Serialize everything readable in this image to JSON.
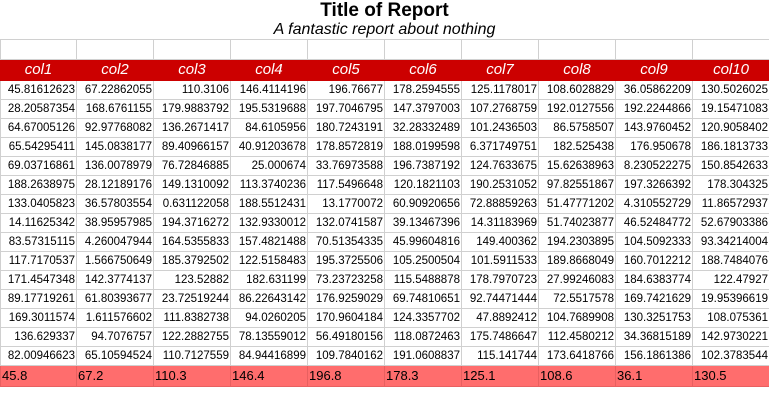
{
  "report": {
    "title": "Title of Report",
    "subtitle": "A fantastic report about nothing"
  },
  "table": {
    "columns": [
      "col1",
      "col2",
      "col3",
      "col4",
      "col5",
      "col6",
      "col7",
      "col8",
      "col9",
      "col10"
    ],
    "rows": [
      [
        "45.81612623",
        "67.22862055",
        "110.3106",
        "146.4114196",
        "196.76677",
        "178.2594555",
        "125.1178017",
        "108.6028829",
        "36.05862209",
        "130.5026025"
      ],
      [
        "28.20587354",
        "168.6761155",
        "179.9883792",
        "195.5319688",
        "197.7046795",
        "147.3797003",
        "107.2768759",
        "192.0127556",
        "192.2244866",
        "19.15471083"
      ],
      [
        "64.67005126",
        "92.97768082",
        "136.2671417",
        "84.6105956",
        "180.7243191",
        "32.28332489",
        "101.2436503",
        "86.5758507",
        "143.9760452",
        "120.9058402"
      ],
      [
        "65.54295411",
        "145.0838177",
        "89.40966157",
        "40.91203678",
        "178.8572819",
        "188.0199598",
        "6.371749751",
        "182.525438",
        "176.950678",
        "186.1813733"
      ],
      [
        "69.03716861",
        "136.0078979",
        "76.72846885",
        "25.000674",
        "33.76973588",
        "196.7387192",
        "124.7633675",
        "15.62638963",
        "8.230522275",
        "150.8542633"
      ],
      [
        "188.2638975",
        "28.12189176",
        "149.1310092",
        "113.3740236",
        "117.5496648",
        "120.1821103",
        "190.2531052",
        "97.82551867",
        "197.3266392",
        "178.304325"
      ],
      [
        "133.0405823",
        "36.57803554",
        "0.631122058",
        "188.5512431",
        "13.1770072",
        "60.90920656",
        "72.88859263",
        "51.47771202",
        "4.310552729",
        "11.86572937"
      ],
      [
        "14.11625342",
        "38.95957985",
        "194.3716272",
        "132.9330012",
        "132.0741587",
        "39.13467396",
        "14.31183969",
        "51.74023877",
        "46.52484772",
        "52.67903386"
      ],
      [
        "83.57315115",
        "4.260047944",
        "164.5355833",
        "157.4821488",
        "70.51354335",
        "45.99604816",
        "149.400362",
        "194.2303895",
        "104.5092333",
        "93.34214004"
      ],
      [
        "117.7170537",
        "1.566750649",
        "185.3792502",
        "122.5158483",
        "195.3725506",
        "105.2500504",
        "101.5911533",
        "189.8668049",
        "160.7012212",
        "188.7484076"
      ],
      [
        "171.4547348",
        "142.3774137",
        "123.52882",
        "182.631199",
        "73.23723258",
        "115.5488878",
        "178.7970723",
        "27.99246083",
        "184.6383774",
        "122.47927"
      ],
      [
        "89.17719261",
        "61.80393677",
        "23.72519244",
        "86.22643142",
        "176.9259029",
        "69.74810651",
        "92.74471444",
        "72.5517578",
        "169.7421629",
        "19.95396619"
      ],
      [
        "169.3011574",
        "1.611576602",
        "111.8382738",
        "94.0260205",
        "170.9604184",
        "124.3357702",
        "47.8892412",
        "104.7689908",
        "130.3251753",
        "108.075361"
      ],
      [
        "136.629337",
        "94.7076757",
        "122.2882755",
        "78.13559012",
        "56.49180156",
        "118.0872463",
        "175.7486647",
        "112.4580212",
        "34.36815189",
        "142.9730221"
      ],
      [
        "82.00946623",
        "65.10594524",
        "110.7127559",
        "84.94416899",
        "109.7840162",
        "191.0608837",
        "115.141744",
        "173.6418766",
        "156.1861386",
        "102.3783544"
      ]
    ],
    "summary": [
      "45.8",
      "67.2",
      "110.3",
      "146.4",
      "196.8",
      "178.3",
      "125.1",
      "108.6",
      "36.1",
      "130.5"
    ]
  }
}
